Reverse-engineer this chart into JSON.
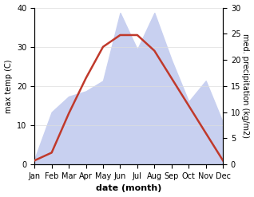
{
  "months": [
    "Jan",
    "Feb",
    "Mar",
    "Apr",
    "May",
    "Jun",
    "Jul",
    "Aug",
    "Sep",
    "Oct",
    "Nov",
    "Dec"
  ],
  "month_indices": [
    0,
    1,
    2,
    3,
    4,
    5,
    6,
    7,
    8,
    9,
    10,
    11
  ],
  "max_temp": [
    1,
    3,
    13,
    22,
    30,
    33,
    33,
    29,
    22,
    15,
    8,
    1
  ],
  "precipitation": [
    1,
    10,
    13,
    14,
    16,
    29,
    22,
    29,
    20,
    12,
    16,
    8
  ],
  "temp_color": "#c0392b",
  "precip_fill_color": "#c8d0f0",
  "background_color": "#ffffff",
  "ylabel_left": "max temp (C)",
  "ylabel_right": "med. precipitation (kg/m2)",
  "xlabel": "date (month)",
  "ylim_left": [
    0,
    40
  ],
  "ylim_right": [
    0,
    30
  ],
  "axis_fontsize": 8,
  "tick_fontsize": 7,
  "line_width": 1.8
}
